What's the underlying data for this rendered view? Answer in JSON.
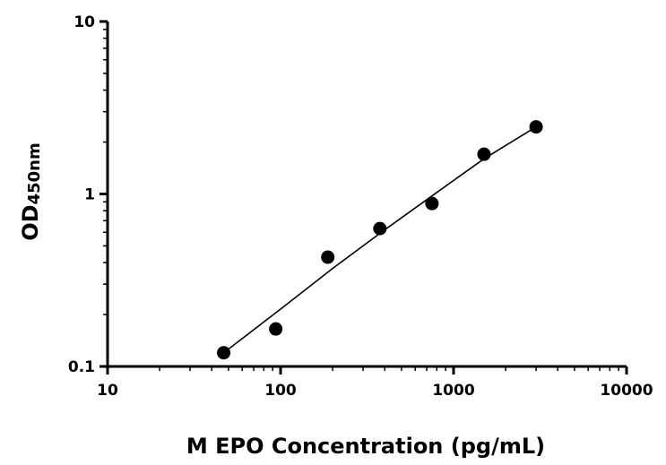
{
  "chart_data": {
    "type": "scatter",
    "xscale": "log",
    "yscale": "log",
    "xlim": [
      10,
      10000
    ],
    "ylim": [
      0.1,
      10
    ],
    "xticks": [
      "10",
      "100",
      "1000",
      "10000"
    ],
    "yticks": [
      "0.1",
      "1",
      "10"
    ],
    "xlabel": "M EPO Concentration (pg/mL)",
    "ylabel_main": "OD",
    "ylabel_sub": "450nm",
    "grid": false,
    "series": [
      {
        "points": [
          {
            "x": 46.9,
            "y": 0.12
          },
          {
            "x": 93.8,
            "y": 0.165
          },
          {
            "x": 187.5,
            "y": 0.43
          },
          {
            "x": 375,
            "y": 0.63
          },
          {
            "x": 750,
            "y": 0.88
          },
          {
            "x": 1500,
            "y": 1.7
          },
          {
            "x": 3000,
            "y": 2.45
          }
        ],
        "fit": [
          {
            "x": 46.9,
            "y": 0.12
          },
          {
            "x": 100,
            "y": 0.215
          },
          {
            "x": 200,
            "y": 0.37
          },
          {
            "x": 400,
            "y": 0.62
          },
          {
            "x": 800,
            "y": 1.02
          },
          {
            "x": 1500,
            "y": 1.6
          },
          {
            "x": 3000,
            "y": 2.45
          }
        ],
        "color": "#000000"
      }
    ]
  }
}
